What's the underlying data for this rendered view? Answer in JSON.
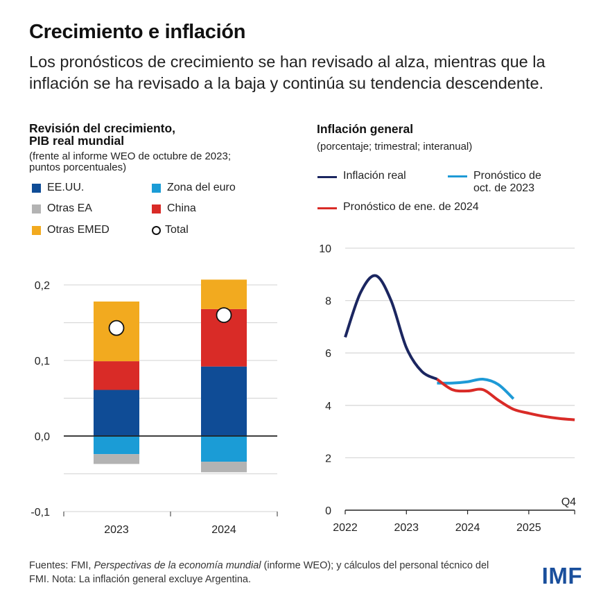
{
  "header": {
    "title": "Crecimiento e inflación",
    "subtitle": "Los pronósticos de crecimiento se han revisado al alza, mientras que la inflación se ha revisado a la baja y continúa su tendencia descendente."
  },
  "left_panel": {
    "title_line1": "Revisión del crecimiento,",
    "title_line2": "PIB real mundial",
    "note_line1": "(frente al informe WEO de octubre de 2023;",
    "note_line2": "puntos porcentuales)",
    "legend": [
      {
        "label": "EE.UU.",
        "color": "#0f4c96",
        "type": "square"
      },
      {
        "label": "Zona del euro",
        "color": "#1b9cd6",
        "type": "square"
      },
      {
        "label": "Otras EA",
        "color": "#b3b3b3",
        "type": "square"
      },
      {
        "label": "China",
        "color": "#d92b27",
        "type": "square"
      },
      {
        "label": "Otras EMED",
        "color": "#f2aa1f",
        "type": "square"
      },
      {
        "label": "Total",
        "color": "#ffffff",
        "type": "circle"
      }
    ]
  },
  "right_panel": {
    "title": "Inflación general",
    "note": "(porcentaje; trimestral; interanual)",
    "legend": [
      {
        "label": "Inflación real",
        "color": "#1b2660"
      },
      {
        "label_line1": "Pronóstico de",
        "label_line2": "oct. de 2023",
        "color": "#1e9ad6"
      },
      {
        "label": "Pronóstico de ene. de 2024",
        "color": "#d92b27"
      }
    ]
  },
  "chart_data": [
    {
      "type": "bar",
      "stacked": true,
      "title": "Revisión del crecimiento, PIB real mundial",
      "subtitle": "(frente al informe WEO de octubre de 2023; puntos porcentuales)",
      "categories": [
        "2023",
        "2024"
      ],
      "series": [
        {
          "name": "EE.UU.",
          "color": "#0f4c96",
          "values": [
            0.061,
            0.092
          ]
        },
        {
          "name": "China",
          "color": "#d92b27",
          "values": [
            0.038,
            0.076
          ]
        },
        {
          "name": "Otras EMED",
          "color": "#f2aa1f",
          "values": [
            0.079,
            0.039
          ]
        },
        {
          "name": "Zona del euro",
          "color": "#1b9cd6",
          "values": [
            -0.024,
            -0.034
          ]
        },
        {
          "name": "Otras EA",
          "color": "#b3b3b3",
          "values": [
            -0.013,
            -0.014
          ]
        }
      ],
      "total": {
        "name": "Total",
        "values": [
          0.143,
          0.16
        ]
      },
      "ylim": [
        -0.1,
        0.2
      ],
      "yticks": [
        -0.1,
        0.0,
        0.1,
        0.2
      ],
      "ytick_labels": [
        "-0,1",
        "0,0",
        "0,1",
        "0,2"
      ],
      "gridlines": [
        -0.05,
        0.05,
        0.15,
        0.2,
        0.1,
        -0.1
      ],
      "grid": true,
      "legend_position": "top"
    },
    {
      "type": "line",
      "title": "Inflación general",
      "subtitle": "(porcentaje; trimestral; interanual)",
      "x_quarters_from": "2022Q1",
      "xticks": [
        "2022",
        "2023",
        "2024",
        "2025"
      ],
      "x_end_label": "Q4",
      "ylim": [
        0,
        10
      ],
      "yticks": [
        0,
        2,
        4,
        6,
        8,
        10
      ],
      "ytick_labels": [
        "0",
        "2",
        "4",
        "6",
        "8",
        "10"
      ],
      "grid": true,
      "legend_position": "top",
      "series": [
        {
          "name": "Inflación real",
          "color": "#1b2660",
          "x": [
            0,
            1,
            2,
            3,
            4,
            5,
            6
          ],
          "values": [
            6.6,
            8.3,
            8.95,
            8.0,
            6.2,
            5.3,
            5.0
          ]
        },
        {
          "name": "Pronóstico de oct. de 2023",
          "color": "#1e9ad6",
          "x": [
            6,
            7,
            8,
            9,
            10,
            11
          ],
          "values": [
            4.85,
            4.85,
            4.9,
            5.0,
            4.8,
            4.25
          ]
        },
        {
          "name": "Pronóstico de ene. de 2024",
          "color": "#d92b27",
          "x": [
            6,
            7,
            8,
            9,
            10,
            11,
            12,
            13,
            14,
            15
          ],
          "values": [
            5.0,
            4.6,
            4.55,
            4.6,
            4.2,
            3.85,
            3.7,
            3.58,
            3.5,
            3.45
          ]
        }
      ]
    }
  ],
  "footer": {
    "text_before": "Fuentes: FMI, ",
    "text_italic": "Perspectivas de la economía mundial",
    "text_after": " (informe WEO); y cálculos del personal técnico del FMI. Nota: La inflación general excluye Argentina.",
    "logo": "IMF"
  }
}
